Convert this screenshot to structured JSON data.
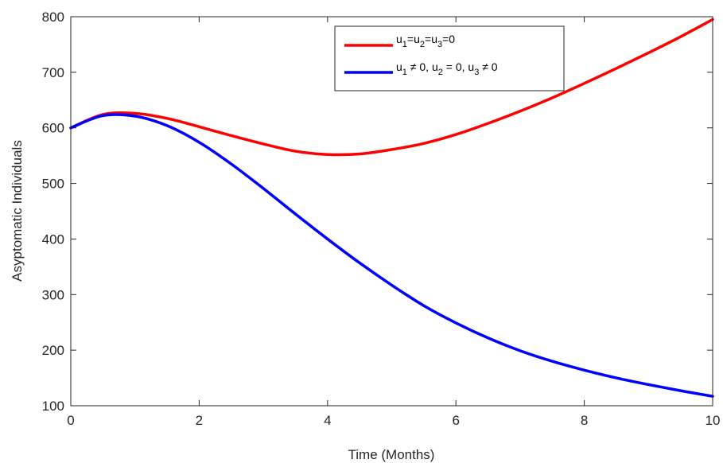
{
  "chart_data": {
    "type": "line",
    "title": "",
    "xlabel": "Time (Months)",
    "ylabel": "Asyptomatic Individuals",
    "xlim": [
      0,
      10
    ],
    "ylim": [
      100,
      800
    ],
    "x_ticks": [
      "0",
      "2",
      "4",
      "6",
      "8",
      "10"
    ],
    "y_ticks": [
      "100",
      "200",
      "300",
      "400",
      "500",
      "600",
      "700",
      "800"
    ],
    "grid": false,
    "legend_position": "top-right",
    "x": [
      0,
      0.5,
      1,
      1.5,
      2,
      2.5,
      3,
      3.5,
      4,
      4.5,
      5,
      5.5,
      6,
      6.5,
      7,
      7.5,
      8,
      8.5,
      9,
      9.5,
      10
    ],
    "series": [
      {
        "legend_parts": [
          "u",
          "1",
          "=u",
          "2",
          "=u",
          "3",
          "=0"
        ],
        "color": "#ff0000",
        "values": [
          600,
          624,
          626,
          617,
          602,
          586,
          571,
          558,
          552,
          553,
          561,
          572,
          588,
          608,
          630,
          654,
          680,
          707,
          735,
          764,
          795
        ]
      },
      {
        "legend_parts": [
          "u",
          "1",
          " ≠ 0, u",
          "2",
          " = 0, u",
          "3",
          " ≠ 0"
        ],
        "color": "#0000ff",
        "values": [
          600,
          622,
          621,
          604,
          574,
          535,
          491,
          445,
          400,
          357,
          317,
          280,
          249,
          222,
          199,
          180,
          164,
          150,
          138,
          127,
          117
        ]
      }
    ]
  }
}
